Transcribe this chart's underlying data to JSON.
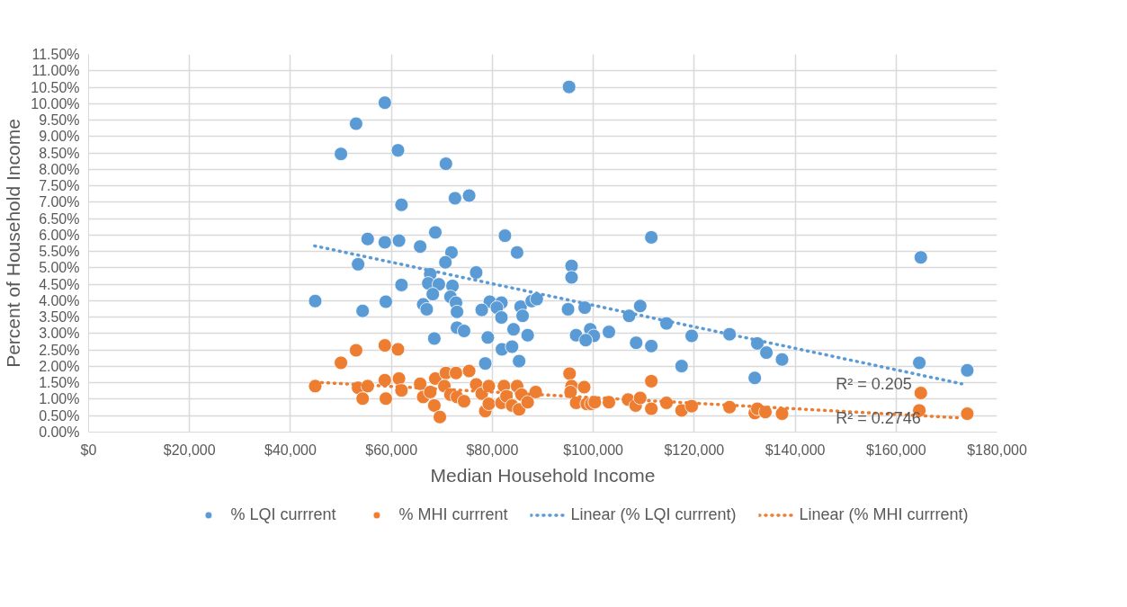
{
  "chart_data": {
    "type": "scatter",
    "xlabel": "Median Household Income",
    "ylabel": "Percent of Household Income",
    "xlim": [
      0,
      180000
    ],
    "xticks": [
      {
        "value": 0,
        "label": "$0"
      },
      {
        "value": 20000,
        "label": "$20,000"
      },
      {
        "value": 40000,
        "label": "$40,000"
      },
      {
        "value": 60000,
        "label": "$60,000"
      },
      {
        "value": 80000,
        "label": "$80,000"
      },
      {
        "value": 100000,
        "label": "$100,000"
      },
      {
        "value": 120000,
        "label": "$120,000"
      },
      {
        "value": 140000,
        "label": "$140,000"
      },
      {
        "value": 160000,
        "label": "$160,000"
      },
      {
        "value": 180000,
        "label": "$180,000"
      }
    ],
    "ylim": [
      0,
      11.5
    ],
    "yticks": [
      {
        "value": 0,
        "label": "0.00%"
      },
      {
        "value": 0.5,
        "label": "0.50%"
      },
      {
        "value": 1,
        "label": "1.00%"
      },
      {
        "value": 1.5,
        "label": "1.50%"
      },
      {
        "value": 2,
        "label": "2.00%"
      },
      {
        "value": 2.5,
        "label": "2.50%"
      },
      {
        "value": 3,
        "label": "3.00%"
      },
      {
        "value": 3.5,
        "label": "3.50%"
      },
      {
        "value": 4,
        "label": "4.00%"
      },
      {
        "value": 4.5,
        "label": "4.50%"
      },
      {
        "value": 5,
        "label": "5.00%"
      },
      {
        "value": 5.5,
        "label": "5.50%"
      },
      {
        "value": 6,
        "label": "6.00%"
      },
      {
        "value": 6.5,
        "label": "6.50%"
      },
      {
        "value": 7,
        "label": "7.00%"
      },
      {
        "value": 7.5,
        "label": "7.50%"
      },
      {
        "value": 8,
        "label": "8.00%"
      },
      {
        "value": 8.5,
        "label": "8.50%"
      },
      {
        "value": 9,
        "label": "9.00%"
      },
      {
        "value": 9.5,
        "label": "9.50%"
      },
      {
        "value": 10,
        "label": "10.00%"
      },
      {
        "value": 10.5,
        "label": "10.50%"
      },
      {
        "value": 11,
        "label": "11.00%"
      },
      {
        "value": 11.5,
        "label": "11.50%"
      }
    ],
    "grid": true,
    "legend": "bottom",
    "marker": "circle",
    "series": [
      {
        "name": "% LQI currrent",
        "color": "#5b9bd5",
        "x": [
          95200,
          58700,
          53000,
          50000,
          61300,
          70800,
          72600,
          75400,
          62000,
          55300,
          58700,
          61500,
          65700,
          68700,
          71900,
          70700,
          53400,
          82500,
          84900,
          76800,
          67700,
          67300,
          69400,
          72100,
          62000,
          68200,
          71700,
          72800,
          66300,
          67000,
          73000,
          44900,
          54300,
          58900,
          79500,
          81800,
          77900,
          80900,
          81800,
          85600,
          86000,
          87800,
          88800,
          95700,
          95700,
          95000,
          98300,
          73000,
          74400,
          68500,
          79100,
          84200,
          87000,
          81900,
          83900,
          85300,
          78600,
          96600,
          111500,
          109300,
          107100,
          114500,
          99400,
          100100,
          98500,
          103100,
          108500,
          111500,
          119500,
          127000,
          132500,
          134300,
          137400,
          117500,
          132000,
          164900,
          164600,
          174100
        ],
        "values": [
          10.51,
          10.03,
          9.39,
          8.47,
          8.58,
          8.17,
          7.12,
          7.2,
          6.92,
          5.88,
          5.78,
          5.83,
          5.65,
          6.08,
          5.47,
          5.17,
          5.11,
          5.98,
          5.47,
          4.86,
          4.81,
          4.53,
          4.5,
          4.45,
          4.48,
          4.2,
          4.12,
          3.94,
          3.89,
          3.74,
          3.66,
          3.99,
          3.69,
          3.97,
          3.97,
          3.94,
          3.72,
          3.79,
          3.49,
          3.82,
          3.54,
          3.99,
          4.05,
          5.06,
          4.71,
          3.74,
          3.79,
          3.18,
          3.08,
          2.85,
          2.88,
          3.13,
          2.95,
          2.52,
          2.6,
          2.16,
          2.09,
          2.95,
          5.93,
          3.84,
          3.54,
          3.31,
          3.13,
          2.93,
          2.8,
          3.05,
          2.72,
          2.62,
          2.93,
          2.98,
          2.7,
          2.42,
          2.21,
          2.01,
          1.65,
          5.32,
          2.11,
          1.88
        ]
      },
      {
        "name": "% MHI currrent",
        "color": "#ed7d31",
        "x": [
          58700,
          53000,
          61300,
          50000,
          44900,
          53400,
          55300,
          54300,
          58700,
          58900,
          61500,
          62000,
          65700,
          68700,
          70800,
          72800,
          75400,
          66300,
          67700,
          68500,
          69600,
          70500,
          71700,
          73000,
          74400,
          76800,
          77900,
          79300,
          78600,
          79300,
          81800,
          82300,
          82800,
          83900,
          84900,
          85300,
          85800,
          87000,
          88600,
          95300,
          95700,
          95500,
          98200,
          96600,
          98700,
          99600,
          100300,
          103100,
          106900,
          108400,
          109300,
          111500,
          111500,
          114500,
          117500,
          119500,
          127000,
          132000,
          132500,
          134100,
          137400,
          164900,
          164600,
          174100
        ],
        "values": [
          2.64,
          2.49,
          2.52,
          2.11,
          1.4,
          1.35,
          1.4,
          1.02,
          1.58,
          1.02,
          1.63,
          1.27,
          1.47,
          1.63,
          1.8,
          1.8,
          1.86,
          1.07,
          1.22,
          0.81,
          0.46,
          1.4,
          1.14,
          1.07,
          0.94,
          1.45,
          1.17,
          1.4,
          0.64,
          0.86,
          0.89,
          1.4,
          1.09,
          0.81,
          1.4,
          0.69,
          1.14,
          0.91,
          1.22,
          1.78,
          1.4,
          1.22,
          1.37,
          0.89,
          0.86,
          0.86,
          0.91,
          0.91,
          0.99,
          0.81,
          1.04,
          1.55,
          0.71,
          0.89,
          0.66,
          0.79,
          0.76,
          0.58,
          0.71,
          0.61,
          0.56,
          1.19,
          0.66,
          0.56
        ]
      },
      {
        "name": "Linear (% LQI currrent)",
        "color": "#5b9bd5",
        "type": "line",
        "marker": "none",
        "line_style": "dotted",
        "x": [
          44800,
          173000
        ],
        "values": [
          5.67,
          1.47
        ]
      },
      {
        "name": "Linear (% MHI currrent)",
        "color": "#ed7d31",
        "type": "line",
        "marker": "none",
        "line_style": "dotted",
        "x": [
          44900,
          173000
        ],
        "values": [
          1.52,
          0.43
        ]
      }
    ],
    "annotations": [
      "R² = 0.205",
      "R² = 0.2746"
    ]
  }
}
